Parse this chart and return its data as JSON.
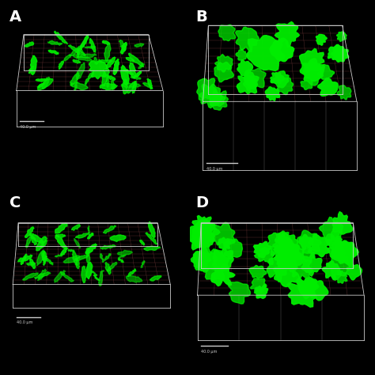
{
  "background_color": "#000000",
  "panel_labels": [
    "A",
    "B",
    "C",
    "D"
  ],
  "label_color": "#ffffff",
  "label_fontsize": 14,
  "label_fontweight": "bold",
  "grid_color": "#cccccc",
  "floor_grid_color": "#884444",
  "biofilm_color": "#00ee00",
  "scale_bar_color": "#ffffff",
  "figsize": [
    4.74,
    4.74
  ],
  "dpi": 100
}
